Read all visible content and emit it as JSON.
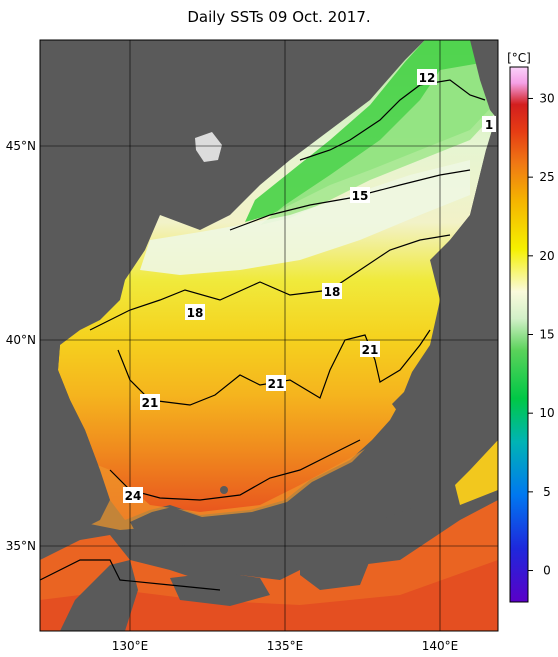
{
  "title": "Daily SSTs 09 Oct. 2017.",
  "axes": {
    "lon_ticks": [
      "130°E",
      "135°E",
      "140°E"
    ],
    "lat_ticks": [
      "45°N",
      "40°N",
      "35°N"
    ]
  },
  "colorbar": {
    "unit": "[°C]",
    "range": [
      -2,
      32
    ],
    "tick_labels": [
      "30",
      "25",
      "20",
      "15",
      "10",
      "5",
      "0"
    ]
  },
  "contour_labels": [
    "12",
    "1",
    "15",
    "18",
    "18",
    "21",
    "21",
    "21",
    "24"
  ],
  "colors": {
    "land": "#5a5a5a",
    "ice_white": "#f4f4f4",
    "sst_12": "#3ccc3c",
    "sst_15": "#c8f0b4",
    "sst_18": "#f2f2cc",
    "sst_21": "#f4f020",
    "sst_24": "#f4a818",
    "sst_27": "#ea6020"
  }
}
